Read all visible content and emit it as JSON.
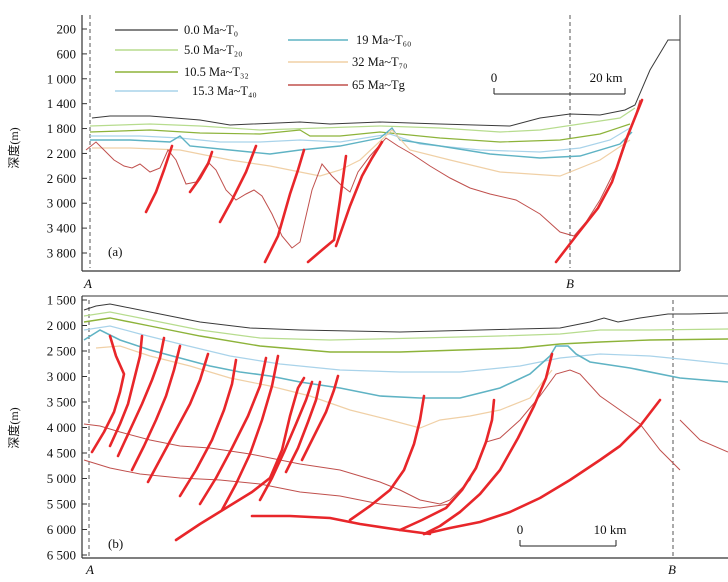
{
  "panel_a": {
    "label": "(a)",
    "ylabel": "深度(m)",
    "yticks": [
      "200",
      "600",
      "1 000",
      "1 400",
      "1 800",
      "2 200",
      "2 600",
      "3 000",
      "3 400",
      "3 800"
    ],
    "point_left": "A",
    "point_right": "B",
    "scale": {
      "start": "0",
      "end": "20 km"
    },
    "legend": [
      {
        "label": "0.0 Ma~T₀",
        "color": "#3a3a3a"
      },
      {
        "label": "5.0 Ma~T₂₀",
        "color": "#b7dc8e"
      },
      {
        "label": "10.5 Ma~T₃₂",
        "color": "#8db33a"
      },
      {
        "label": "15.3 Ma~T₄₀",
        "color": "#a9d3ea"
      },
      {
        "label": "19 Ma~T₆₀",
        "color": "#5fb3c4"
      },
      {
        "label": "32 Ma~T₇₀",
        "color": "#f0d0a6"
      },
      {
        "label": "65 Ma~Tg",
        "color": "#c0504d"
      }
    ]
  },
  "panel_b": {
    "label": "(b)",
    "ylabel": "深度(m)",
    "yticks": [
      "1 500",
      "2 000",
      "2 500",
      "3 000",
      "3 500",
      "4 000",
      "4 500",
      "5 000",
      "5 500",
      "6 000",
      "6 500"
    ],
    "point_left": "A",
    "point_right": "B",
    "scale": {
      "start": "0",
      "end": "10 km"
    }
  },
  "colors": {
    "fault": "#e8262a",
    "frame": "#333333"
  }
}
